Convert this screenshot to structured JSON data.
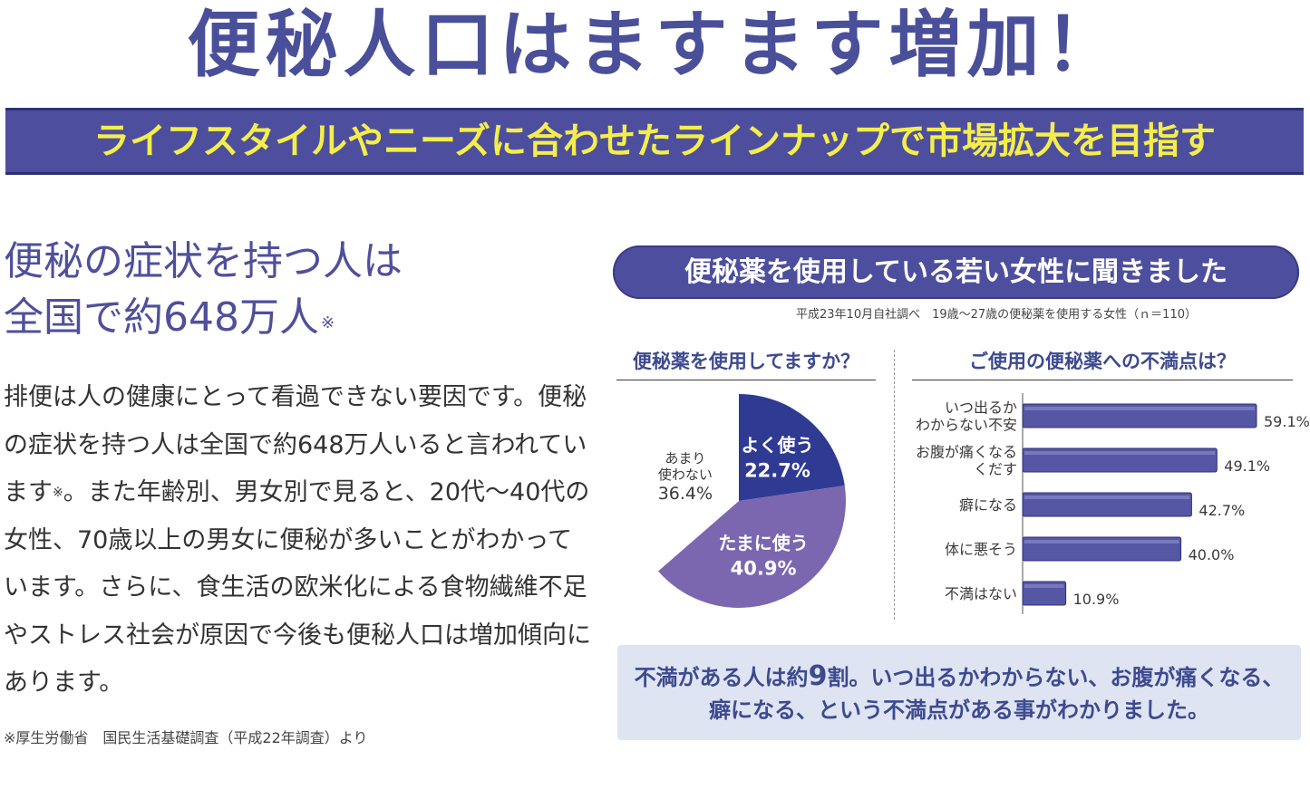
{
  "headline": "便秘人口はますます増加！",
  "banner": "ライフスタイルやニーズに合わせたラインナップで市場拡大を目指す",
  "left": {
    "heading_line1": "便秘の症状を持つ人は",
    "heading_line2": "全国で約648万人",
    "heading_ref": "※",
    "body_part1": "排便は人の健康にとって看過できない要因です。便秘の症状を持つ人は全国で約648万人いると言われています",
    "body_ref": "※",
    "body_part2": "。また年齢別、男女別で見ると、20代〜40代の女性、70歳以上の男女に便秘が多いことがわかっています。さらに、食生活の欧米化による食物繊維不足やストレス社会が原因で今後も便秘人口は増加傾向にあります。",
    "note": "※厚生労働省　国民生活基礎調査（平成22年調査）より"
  },
  "survey": {
    "title": "便秘薬を使用している若い女性に聞きました",
    "source": "平成23年10月自社調べ　19歳〜27歳の便秘薬を使用する女性（ｎ＝110）",
    "summary_part1": "不満がある人は約",
    "summary_big": "9",
    "summary_part2": "割。いつ出るかわからない、お腹が痛くなる、",
    "summary_line2": "癖になる、という不満点がある事がわかりました。"
  },
  "colors": {
    "headline": "#4a4f9a",
    "banner_bg": "#4d4f9e",
    "banner_text": "#f5ee4a",
    "pie_often": "#2f3a93",
    "pie_sometimes": "#7a67b0",
    "pie_rarely": "#ffffff",
    "bar_fill": "#5557a4",
    "summary_bg": "#dfe4f2"
  },
  "chart_data": [
    {
      "type": "pie",
      "title": "便秘薬を使用してますか？",
      "slices": [
        {
          "label_lines": [
            "よく使う"
          ],
          "value": 22.7,
          "display": "22.7%"
        },
        {
          "label_lines": [
            "たまに使う"
          ],
          "value": 40.9,
          "display": "40.9%"
        },
        {
          "label_lines": [
            "あまり",
            "使わない"
          ],
          "value": 36.4,
          "display": "36.4%"
        }
      ]
    },
    {
      "type": "bar",
      "orientation": "horizontal",
      "title": "ご使用の便秘薬への不満点は？",
      "categories": [
        [
          "いつ出るか",
          "わからない不安"
        ],
        [
          "お腹が痛くなる",
          "くだす"
        ],
        [
          "癖になる"
        ],
        [
          "体に悪そう"
        ],
        [
          "不満はない"
        ]
      ],
      "values": [
        59.1,
        49.1,
        42.7,
        40.0,
        10.9
      ],
      "display_values": [
        "59.1%",
        "49.1%",
        "42.7%",
        "40.0%",
        "10.9%"
      ]
    }
  ]
}
